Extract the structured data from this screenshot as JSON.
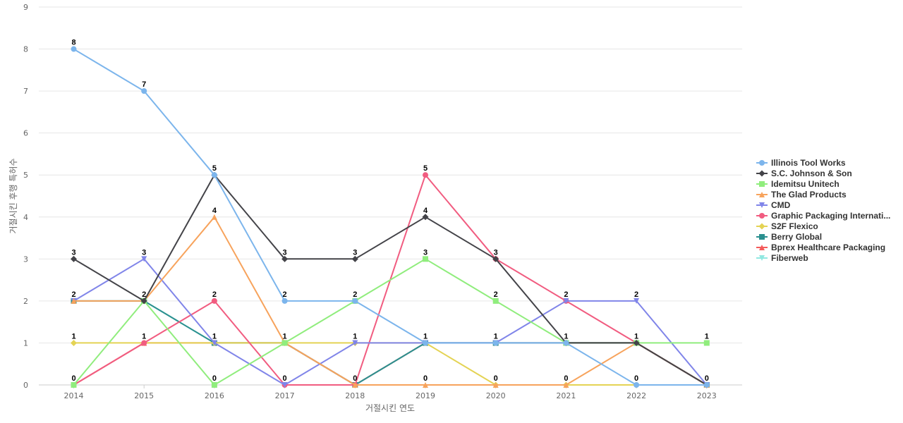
{
  "chart_data": {
    "type": "line",
    "xlabel": "거절시킨 연도",
    "ylabel": "거절시킨 후행 특허수",
    "ylim": [
      0,
      9
    ],
    "yticks": [
      0,
      1,
      2,
      3,
      4,
      5,
      6,
      7,
      8,
      9
    ],
    "x": [
      "2014",
      "2015",
      "2016",
      "2017",
      "2018",
      "2019",
      "2020",
      "2021",
      "2022",
      "2023"
    ],
    "grid": true,
    "legend_position": "right",
    "series": [
      {
        "name": "Illinois Tool Works",
        "color": "#7cb5ec",
        "marker": "circle",
        "values": [
          8,
          7,
          5,
          2,
          2,
          1,
          1,
          1,
          0,
          0
        ]
      },
      {
        "name": "S.C. Johnson & Son",
        "color": "#434348",
        "marker": "diamond",
        "values": [
          3,
          2,
          5,
          3,
          3,
          4,
          3,
          1,
          1,
          0
        ]
      },
      {
        "name": "Idemitsu Unitech",
        "color": "#90ed7d",
        "marker": "square",
        "values": [
          0,
          2,
          0,
          1,
          2,
          3,
          2,
          1,
          1,
          1
        ]
      },
      {
        "name": "The Glad Products",
        "color": "#f7a35c",
        "marker": "triangle",
        "values": [
          2,
          2,
          4,
          1,
          0,
          0,
          0,
          0,
          1,
          0
        ]
      },
      {
        "name": "CMD",
        "color": "#8085e9",
        "marker": "triangle-down",
        "values": [
          2,
          3,
          1,
          0,
          1,
          1,
          1,
          2,
          2,
          0
        ]
      },
      {
        "name": "Graphic Packaging Internati...",
        "color": "#f15c80",
        "marker": "circle",
        "values": [
          0,
          1,
          2,
          0,
          0,
          5,
          3,
          2,
          1,
          0
        ]
      },
      {
        "name": "S2F Flexico",
        "color": "#e4d354",
        "marker": "diamond",
        "values": [
          1,
          1,
          1,
          1,
          1,
          1,
          0,
          0,
          0,
          0
        ]
      },
      {
        "name": "Berry Global",
        "color": "#2b908f",
        "marker": "square",
        "values": [
          2,
          2,
          1,
          1,
          0,
          1,
          1,
          1,
          1,
          0
        ]
      },
      {
        "name": "Bprex Healthcare Packaging",
        "color": "#f45b5b",
        "marker": "triangle",
        "values": [
          0,
          1,
          1,
          1,
          0,
          1,
          1,
          1,
          1,
          0
        ]
      },
      {
        "name": "Fiberweb",
        "color": "#91e8e1",
        "marker": "triangle-down",
        "values": [
          2,
          2,
          1,
          1,
          0,
          1,
          1,
          1,
          1,
          0
        ]
      }
    ],
    "data_labels": [
      {
        "x": "2014",
        "value": 8
      },
      {
        "x": "2014",
        "value": 3
      },
      {
        "x": "2014",
        "value": 2
      },
      {
        "x": "2014",
        "value": 1
      },
      {
        "x": "2014",
        "value": 0
      },
      {
        "x": "2015",
        "value": 7
      },
      {
        "x": "2015",
        "value": 3
      },
      {
        "x": "2015",
        "value": 2
      },
      {
        "x": "2015",
        "value": 1
      },
      {
        "x": "2016",
        "value": 5
      },
      {
        "x": "2016",
        "value": 4
      },
      {
        "x": "2016",
        "value": 2
      },
      {
        "x": "2016",
        "value": 1
      },
      {
        "x": "2016",
        "value": 0
      },
      {
        "x": "2017",
        "value": 3
      },
      {
        "x": "2017",
        "value": 2
      },
      {
        "x": "2017",
        "value": 1
      },
      {
        "x": "2017",
        "value": 0
      },
      {
        "x": "2018",
        "value": 3
      },
      {
        "x": "2018",
        "value": 2
      },
      {
        "x": "2018",
        "value": 1
      },
      {
        "x": "2018",
        "value": 0
      },
      {
        "x": "2019",
        "value": 5
      },
      {
        "x": "2019",
        "value": 4
      },
      {
        "x": "2019",
        "value": 3
      },
      {
        "x": "2019",
        "value": 1
      },
      {
        "x": "2019",
        "value": 0
      },
      {
        "x": "2020",
        "value": 3
      },
      {
        "x": "2020",
        "value": 2
      },
      {
        "x": "2020",
        "value": 1
      },
      {
        "x": "2020",
        "value": 0
      },
      {
        "x": "2021",
        "value": 2
      },
      {
        "x": "2021",
        "value": 1
      },
      {
        "x": "2021",
        "value": 0
      },
      {
        "x": "2022",
        "value": 2
      },
      {
        "x": "2022",
        "value": 1
      },
      {
        "x": "2022",
        "value": 0
      },
      {
        "x": "2023",
        "value": 1
      },
      {
        "x": "2023",
        "value": 0
      }
    ]
  }
}
